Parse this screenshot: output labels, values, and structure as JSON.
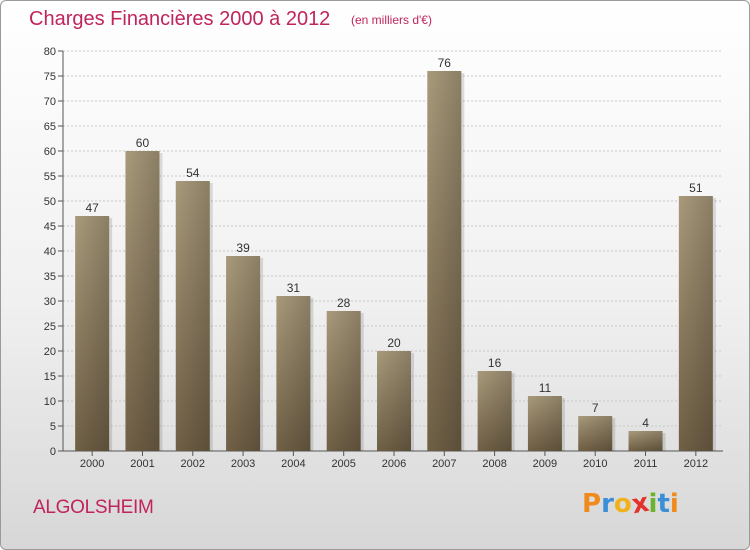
{
  "chart_data": {
    "type": "bar",
    "title": "Charges Financières 2000 à 2012",
    "subtitle": "(en milliers d'€)",
    "categories": [
      "2000",
      "2001",
      "2002",
      "2003",
      "2004",
      "2005",
      "2006",
      "2007",
      "2008",
      "2009",
      "2010",
      "2011",
      "2012"
    ],
    "values": [
      47,
      60,
      54,
      39,
      31,
      28,
      20,
      76,
      16,
      11,
      7,
      4,
      51
    ],
    "ylim": [
      0,
      80
    ],
    "yticks": [
      0,
      5,
      10,
      15,
      20,
      25,
      30,
      35,
      40,
      45,
      50,
      55,
      60,
      65,
      70,
      75,
      80
    ],
    "grid": true,
    "legend": "none",
    "bar_color": "#8b7a5e"
  },
  "footer": {
    "location": "ALGOLSHEIM",
    "logo": {
      "letters": [
        "P",
        "r",
        "o",
        "x",
        "i",
        "t",
        "i"
      ],
      "colors": [
        "#f08a1c",
        "#3a8fd6",
        "#f0b21c",
        "#e2322a",
        "#6ab42d",
        "#3a8fd6",
        "#f08a1c"
      ]
    }
  }
}
